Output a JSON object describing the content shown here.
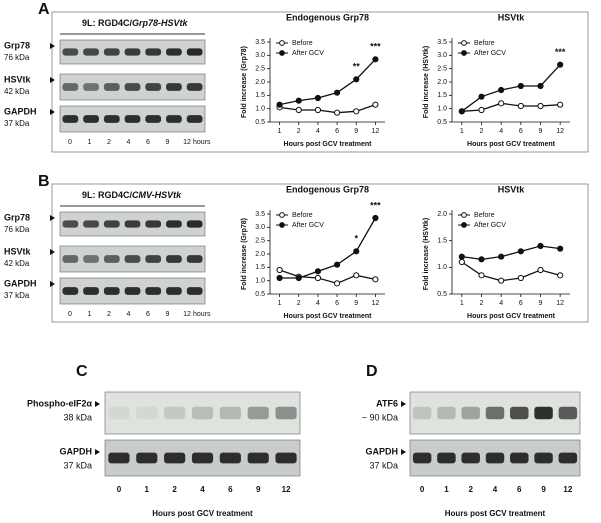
{
  "panel_labels": [
    "A",
    "B",
    "C",
    "D"
  ],
  "blots": {
    "A": {
      "header_prefix": "9L: RGD4C/",
      "header_gene": "Grp78-HSVtk",
      "rows": [
        {
          "name": "Grp78",
          "size": "76 kDa"
        },
        {
          "name": "HSVtk",
          "size": "42 kDa"
        },
        {
          "name": "GAPDH",
          "size": "37 kDa"
        }
      ],
      "lanes": [
        0,
        1,
        2,
        4,
        6,
        9,
        12
      ],
      "lane_unit": "hours"
    },
    "B": {
      "header_prefix": "9L: RGD4C/",
      "header_gene": "CMV-HSVtk",
      "rows": [
        {
          "name": "Grp78",
          "size": "76 kDa"
        },
        {
          "name": "HSVtk",
          "size": "42 kDa"
        },
        {
          "name": "GAPDH",
          "size": "37 kDa"
        }
      ],
      "lanes": [
        0,
        1,
        2,
        4,
        6,
        9,
        12
      ],
      "lane_unit": "hours"
    },
    "C": {
      "rows": [
        {
          "name": "Phospho-eIF2α",
          "size": "38 kDa"
        },
        {
          "name": "GAPDH",
          "size": "37 kDa"
        }
      ],
      "lanes": [
        0,
        1,
        2,
        4,
        6,
        9,
        12
      ],
      "xlabel": "Hours post GCV treatment"
    },
    "D": {
      "rows": [
        {
          "name": "ATF6",
          "size": "~ 90 kDa"
        },
        {
          "name": "GAPDH",
          "size": "37 kDa"
        }
      ],
      "lanes": [
        0,
        1,
        2,
        4,
        6,
        9,
        12
      ],
      "xlabel": "Hours post GCV treatment"
    }
  },
  "chart_data": [
    {
      "type": "line",
      "title": "Endogenous Grp78",
      "ylabel": "Fold increase (Grp78)",
      "xlabel": "Hours post GCV treatment",
      "categories": [
        1,
        2,
        4,
        6,
        9,
        12
      ],
      "series": [
        {
          "name": "Before",
          "color": "#111111",
          "marker": "open",
          "values": [
            1.05,
            0.95,
            0.95,
            0.85,
            0.9,
            1.15
          ]
        },
        {
          "name": "After GCV",
          "color": "#111111",
          "marker": "filled",
          "values": [
            1.15,
            1.3,
            1.4,
            1.6,
            2.1,
            2.85
          ]
        }
      ],
      "ylim": [
        0.5,
        3.5
      ],
      "yticks": [
        0.5,
        {
          "value": 1,
          "label": "1.0"
        },
        1.5,
        {
          "value": 2,
          "label": "2.0"
        },
        2.5,
        {
          "value": 3,
          "label": "3.0"
        },
        3.5
      ],
      "annotations": [
        {
          "x": 9,
          "text": "**"
        },
        {
          "x": 12,
          "text": "***"
        }
      ]
    },
    {
      "type": "line",
      "title": "HSVtk",
      "ylabel": "Fold increase (HSVtk)",
      "xlabel": "Hours post GCV treatment",
      "categories": [
        1,
        2,
        4,
        6,
        9,
        12
      ],
      "series": [
        {
          "name": "Before",
          "color": "#111111",
          "marker": "open",
          "values": [
            0.9,
            0.95,
            1.2,
            1.1,
            1.1,
            1.15
          ]
        },
        {
          "name": "After GCV",
          "color": "#111111",
          "marker": "filled",
          "values": [
            0.9,
            1.45,
            1.7,
            1.85,
            1.85,
            2.65
          ]
        }
      ],
      "ylim": [
        0.5,
        3.5
      ],
      "yticks": [
        0.5,
        {
          "value": 1,
          "label": "1.0"
        },
        1.5,
        {
          "value": 2,
          "label": "2.0"
        },
        2.5,
        {
          "value": 3,
          "label": "3.0"
        },
        3.5
      ],
      "annotations": [
        {
          "x": 12,
          "text": "***"
        }
      ]
    },
    {
      "type": "line",
      "title": "Endogenous Grp78",
      "ylabel": "Fold increase (Grp78)",
      "xlabel": "Hours post GCV treatment",
      "categories": [
        1,
        2,
        4,
        6,
        9,
        12
      ],
      "series": [
        {
          "name": "Before",
          "color": "#111111",
          "marker": "open",
          "values": [
            1.4,
            1.15,
            1.1,
            0.9,
            1.2,
            1.05
          ]
        },
        {
          "name": "After GCV",
          "color": "#111111",
          "marker": "filled",
          "values": [
            1.1,
            1.1,
            1.35,
            1.6,
            2.1,
            3.35
          ]
        }
      ],
      "ylim": [
        0.5,
        3.5
      ],
      "yticks": [
        0.5,
        {
          "value": 1,
          "label": "1.0"
        },
        1.5,
        {
          "value": 2,
          "label": "2.0"
        },
        2.5,
        {
          "value": 3,
          "label": "3.0"
        },
        3.5
      ],
      "annotations": [
        {
          "x": 9,
          "text": "*"
        },
        {
          "x": 12,
          "text": "***"
        }
      ]
    },
    {
      "type": "line",
      "title": "HSVtk",
      "ylabel": "Fold increase (HSVtk)",
      "xlabel": "Hours post GCV treatment",
      "categories": [
        1,
        2,
        4,
        6,
        9,
        12
      ],
      "series": [
        {
          "name": "Before",
          "color": "#111111",
          "marker": "open",
          "values": [
            1.1,
            0.85,
            0.75,
            0.8,
            0.95,
            0.85
          ]
        },
        {
          "name": "After GCV",
          "color": "#111111",
          "marker": "filled",
          "values": [
            1.2,
            1.15,
            1.2,
            1.3,
            1.4,
            1.35
          ]
        }
      ],
      "ylim": [
        0.5,
        2
      ],
      "yticks": [
        0.5,
        {
          "value": 1,
          "label": "1.0"
        },
        1.5,
        {
          "value": 2,
          "label": "2.0"
        }
      ],
      "annotations": []
    }
  ]
}
